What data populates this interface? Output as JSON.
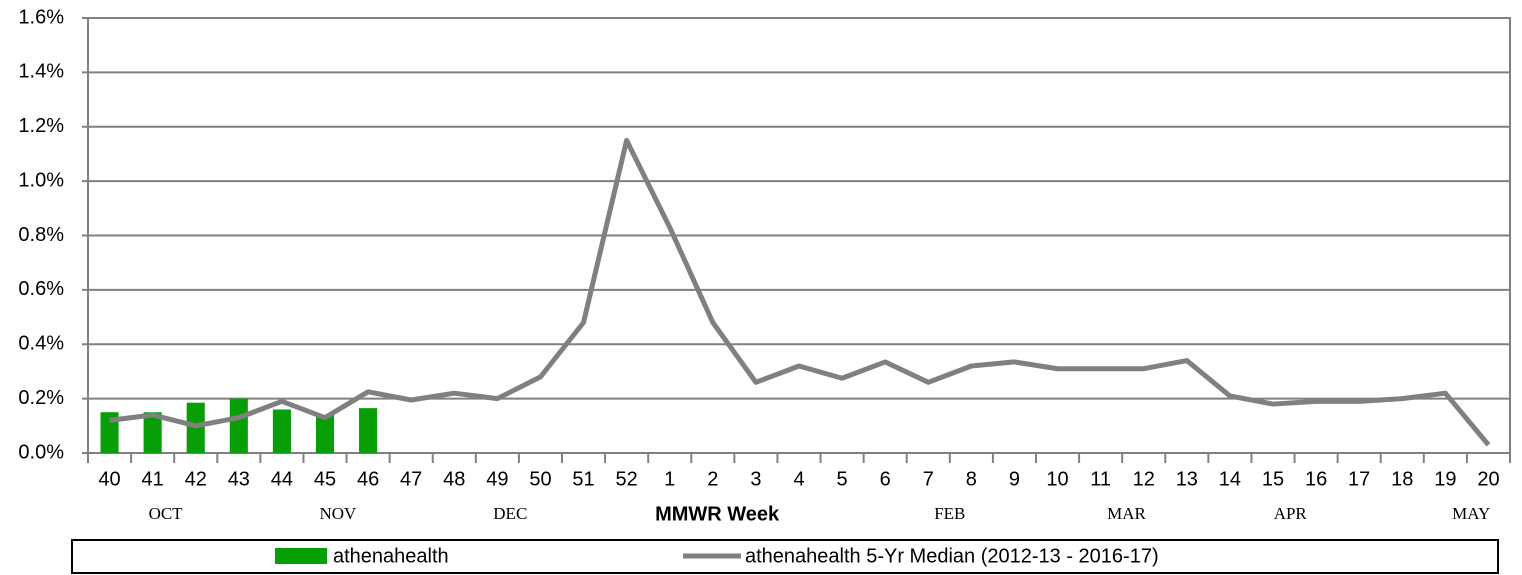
{
  "chart_data": {
    "type": "bar_line",
    "x_label": "MMWR Week",
    "categories": [
      "40",
      "41",
      "42",
      "43",
      "44",
      "45",
      "46",
      "47",
      "48",
      "49",
      "50",
      "51",
      "52",
      "1",
      "2",
      "3",
      "4",
      "5",
      "6",
      "7",
      "8",
      "9",
      "10",
      "11",
      "12",
      "13",
      "14",
      "15",
      "16",
      "17",
      "18",
      "19",
      "20"
    ],
    "month_labels": [
      "OCT",
      "NOV",
      "DEC",
      "FEB",
      "MAR",
      "APR",
      "MAY"
    ],
    "series": [
      {
        "name": "athenahealth",
        "kind": "bar",
        "color": "#079e07",
        "values": [
          0.15,
          0.15,
          0.185,
          0.2,
          0.16,
          0.14,
          0.165,
          null,
          null,
          null,
          null,
          null,
          null,
          null,
          null,
          null,
          null,
          null,
          null,
          null,
          null,
          null,
          null,
          null,
          null,
          null,
          null,
          null,
          null,
          null,
          null,
          null,
          null
        ]
      },
      {
        "name": "athenahealth 5-Yr Median (2012-13 - 2016-17)",
        "kind": "line",
        "color": "#808080",
        "values": [
          0.12,
          0.14,
          0.1,
          0.13,
          0.19,
          0.13,
          0.225,
          0.195,
          0.22,
          0.2,
          0.28,
          0.48,
          1.15,
          0.83,
          0.48,
          0.26,
          0.32,
          0.275,
          0.335,
          0.26,
          0.32,
          0.335,
          0.31,
          0.31,
          0.31,
          0.34,
          0.21,
          0.18,
          0.19,
          0.19,
          0.2,
          0.22,
          0.03
        ]
      }
    ],
    "ylim": [
      0,
      1.6
    ],
    "yticks": [
      {
        "value": 0,
        "label": "0.0%"
      },
      {
        "value": 0.2,
        "label": "0.2%"
      },
      {
        "value": 0.4,
        "label": "0.4%"
      },
      {
        "value": 0.6,
        "label": "0.6%"
      },
      {
        "value": 0.8,
        "label": "0.8%"
      },
      {
        "value": 1.0,
        "label": "1.0%"
      },
      {
        "value": 1.2,
        "label": "1.2%"
      },
      {
        "value": 1.4,
        "label": "1.4%"
      },
      {
        "value": 1.6,
        "label": "1.6%"
      }
    ],
    "grid": true
  }
}
